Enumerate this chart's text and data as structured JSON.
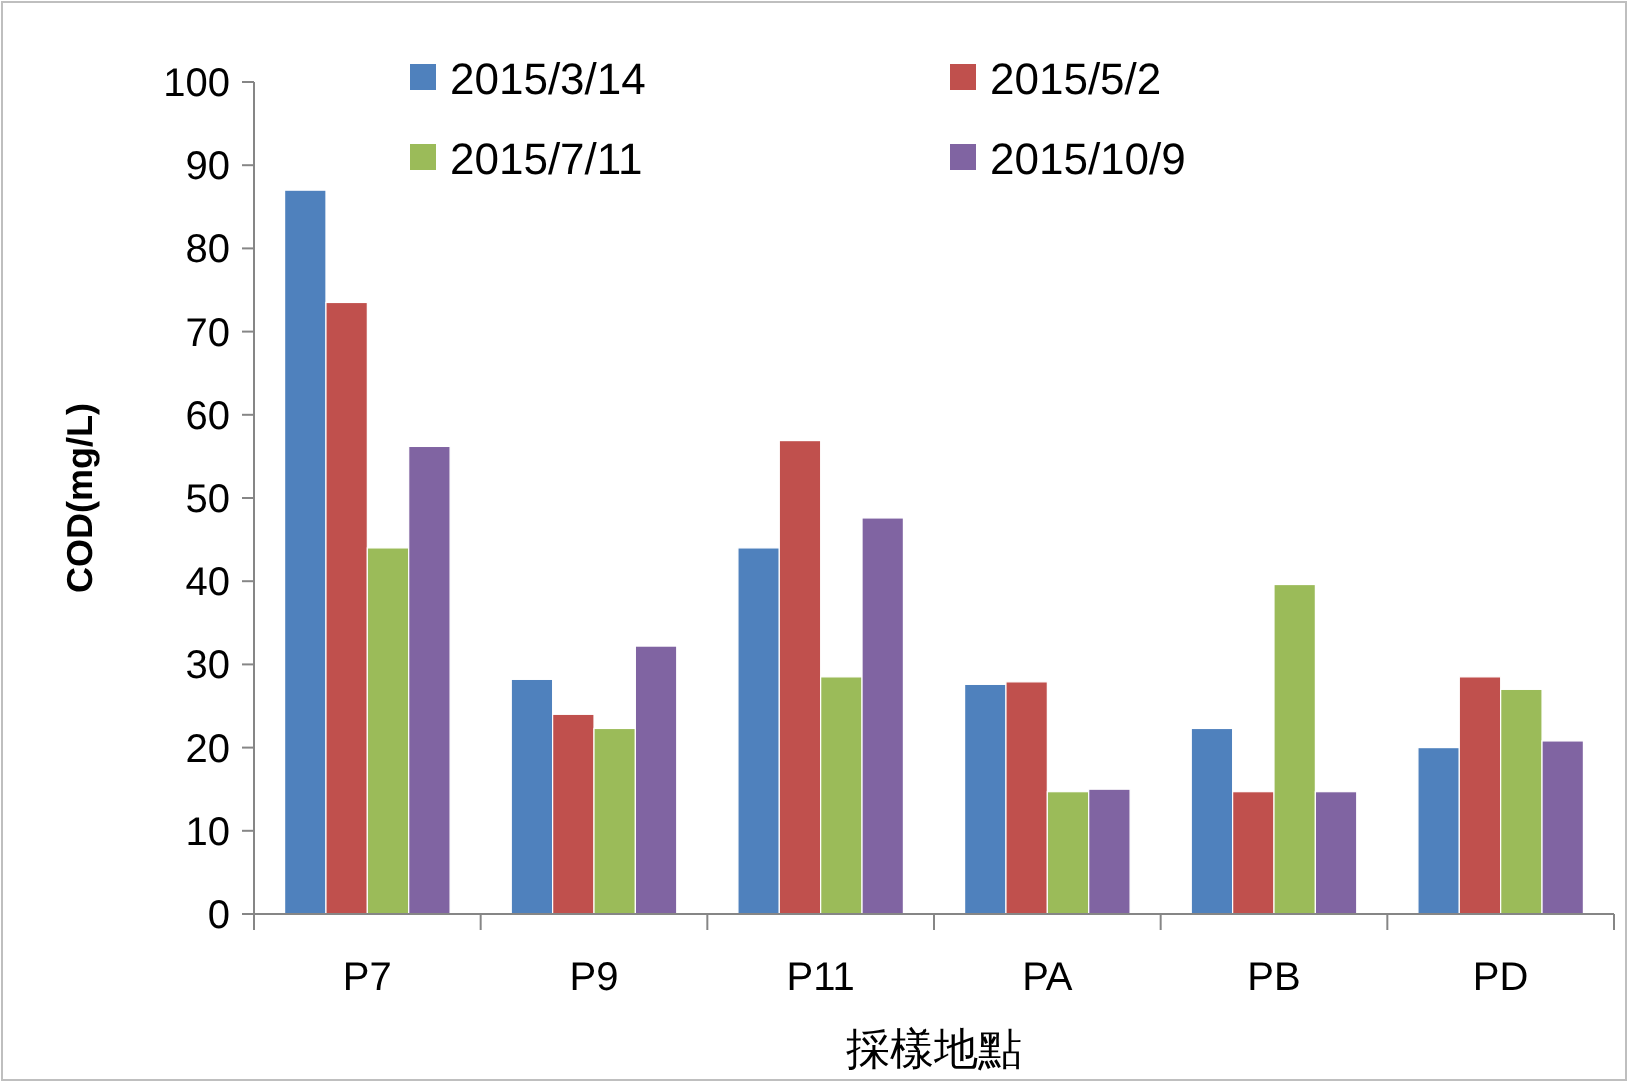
{
  "chart_data": {
    "type": "bar",
    "xlabel": "採樣地點",
    "ylabel": "COD(mg/L)",
    "categories": [
      "P7",
      "P9",
      "P11",
      "PA",
      "PB",
      "PD"
    ],
    "series": [
      {
        "name": "2015/3/14",
        "color": "#4f81bd",
        "values": [
          87,
          28.2,
          44,
          27.6,
          22.3,
          20
        ]
      },
      {
        "name": "2015/5/2",
        "color": "#c0504d",
        "values": [
          73.5,
          24,
          56.9,
          27.9,
          14.7,
          28.5
        ]
      },
      {
        "name": "2015/7/11",
        "color": "#9bbb59",
        "values": [
          44,
          22.3,
          28.5,
          14.7,
          39.6,
          27
        ]
      },
      {
        "name": "2015/10/9",
        "color": "#8064a2",
        "values": [
          56.2,
          32.2,
          47.6,
          15,
          14.7,
          20.8
        ]
      }
    ],
    "ylim": [
      0,
      100
    ],
    "yticks": [
      0,
      10,
      20,
      30,
      40,
      50,
      60,
      70,
      80,
      90,
      100
    ],
    "grid": false,
    "legend": "top"
  }
}
